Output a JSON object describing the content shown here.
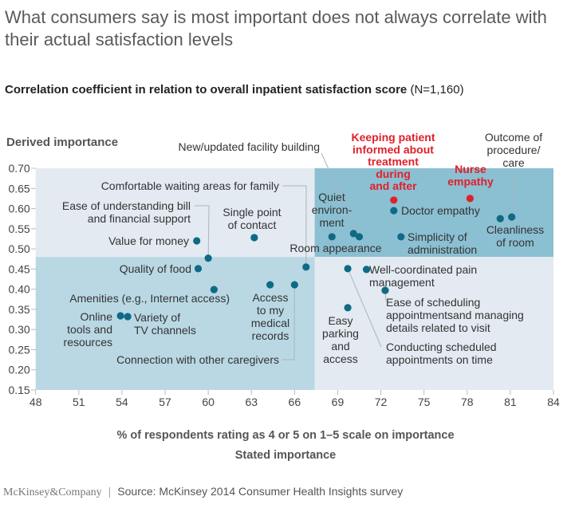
{
  "header": {
    "title": "What consumers say is most important does not always correlate with their actual satisfaction levels",
    "subtitle_bold": "Correlation coefficient in relation to overall inpatient satisfaction score",
    "subtitle_note": "(N=1,160)"
  },
  "footer": {
    "logo": "McKinsey&Company",
    "source": "Source: McKinsey 2014 Consumer Health Insights survey"
  },
  "colors": {
    "point": "#0e6a85",
    "highlight": "#e0202a",
    "quad_light": "#e3eaf1",
    "quad_mid": "#b9d8e4",
    "quad_dark": "#8bbfd2",
    "leader": "#a9b6bd"
  },
  "chart_data": {
    "type": "scatter",
    "title": "Correlation coefficient in relation to overall inpatient satisfaction score (N=1,160)",
    "xlabel": "% of respondents rating as 4 or 5 on 1–5 scale on importance",
    "xlabel2": "Stated importance",
    "ylabel": "Derived importance",
    "xlim": [
      48,
      84
    ],
    "ylim": [
      0.15,
      0.7
    ],
    "xticks": [
      "48",
      "51",
      "54",
      "57",
      "60",
      "63",
      "66",
      "69",
      "72",
      "75",
      "78",
      "81",
      "84"
    ],
    "yticks": [
      "0.15",
      "0.20",
      "0.25",
      "0.30",
      "0.35",
      "0.40",
      "0.45",
      "0.50",
      "0.55",
      "0.60",
      "0.65",
      "0.70"
    ],
    "quadrant_split": {
      "x": 67.4,
      "y": 0.48
    },
    "grid": false,
    "points": [
      {
        "name": "Value for money",
        "x": 59.2,
        "y": 0.52,
        "highlight": false
      },
      {
        "name": "Single point of contact",
        "x": 63.2,
        "y": 0.528,
        "highlight": false
      },
      {
        "name": "Ease of understanding bill and financial support",
        "x": 60.0,
        "y": 0.477,
        "highlight": false
      },
      {
        "name": "Quality of food",
        "x": 59.3,
        "y": 0.451,
        "highlight": false
      },
      {
        "name": "Amenities (e.g., Internet access)",
        "x": 60.4,
        "y": 0.399,
        "highlight": false
      },
      {
        "name": "Access to my medical records",
        "x": 64.3,
        "y": 0.411,
        "highlight": false
      },
      {
        "name": "Connection with other caregivers",
        "x": 66.0,
        "y": 0.411,
        "highlight": false
      },
      {
        "name": "Comfortable waiting areas for family",
        "x": 66.8,
        "y": 0.455,
        "highlight": false
      },
      {
        "name": "Online tools and resources",
        "x": 53.9,
        "y": 0.334,
        "highlight": false
      },
      {
        "name": "Variety of TV channels",
        "x": 54.4,
        "y": 0.332,
        "highlight": false
      },
      {
        "name": "Quiet environment",
        "x": 68.6,
        "y": 0.53,
        "highlight": false
      },
      {
        "name": "Room appearance",
        "x": 70.1,
        "y": 0.538,
        "highlight": false
      },
      {
        "name": "New/updated facility building",
        "x": 70.5,
        "y": 0.53,
        "highlight": false
      },
      {
        "name": "Keeping patient informed about treatment during and after",
        "x": 72.9,
        "y": 0.621,
        "highlight": true
      },
      {
        "name": "Doctor empathy",
        "x": 72.9,
        "y": 0.595,
        "highlight": false
      },
      {
        "name": "Simplicity of administration",
        "x": 73.4,
        "y": 0.53,
        "highlight": false
      },
      {
        "name": "Nurse empathy",
        "x": 78.2,
        "y": 0.625,
        "highlight": true
      },
      {
        "name": "Cleanliness of room",
        "x": 80.3,
        "y": 0.575,
        "highlight": false
      },
      {
        "name": "Outcome of procedure/care",
        "x": 81.1,
        "y": 0.579,
        "highlight": false
      },
      {
        "name": "Conducting scheduled appointments on time",
        "x": 69.7,
        "y": 0.451,
        "highlight": false
      },
      {
        "name": "Well-coordinated pain management",
        "x": 71.0,
        "y": 0.449,
        "highlight": false
      },
      {
        "name": "Ease of scheduling appointmentsand managing details related to visit",
        "x": 72.3,
        "y": 0.397,
        "highlight": false
      },
      {
        "name": "Easy parking and access",
        "x": 69.7,
        "y": 0.354,
        "highlight": false
      }
    ],
    "labels": [
      {
        "point": 0,
        "lines": [
          "Value for money"
        ]
      },
      {
        "point": 1,
        "lines": [
          "Single point",
          "of contact"
        ]
      },
      {
        "point": 2,
        "lines": [
          "Ease of understanding bill",
          "and financial support"
        ]
      },
      {
        "point": 3,
        "lines": [
          "Quality of food"
        ]
      },
      {
        "point": 4,
        "lines": [
          "Amenities (e.g., Internet access)"
        ]
      },
      {
        "point": 5,
        "lines": [
          "Access",
          "to my",
          "medical",
          "records"
        ]
      },
      {
        "point": 6,
        "lines": [
          "Connection with other caregivers"
        ]
      },
      {
        "point": 7,
        "lines": [
          "Comfortable waiting areas for family"
        ]
      },
      {
        "point": 8,
        "lines": [
          "Online",
          "tools and",
          "resources"
        ]
      },
      {
        "point": 9,
        "lines": [
          "Variety of",
          "TV channels"
        ]
      },
      {
        "point": 10,
        "lines": [
          "Quiet",
          "environ-",
          "ment"
        ]
      },
      {
        "point": 11,
        "lines": [
          "Room appearance"
        ]
      },
      {
        "point": 12,
        "lines": [
          "New/updated facility building"
        ]
      },
      {
        "point": 13,
        "lines": [
          "Keeping patient",
          "informed about",
          "treatment",
          "during",
          "and after"
        ]
      },
      {
        "point": 14,
        "lines": [
          "Doctor empathy"
        ]
      },
      {
        "point": 15,
        "lines": [
          "Simplicity of",
          "administration"
        ]
      },
      {
        "point": 16,
        "lines": [
          "Nurse",
          "empathy"
        ]
      },
      {
        "point": 17,
        "lines": [
          "Cleanliness",
          "of room"
        ]
      },
      {
        "point": 18,
        "lines": [
          "Outcome of",
          "procedure/",
          "care"
        ]
      },
      {
        "point": 19,
        "lines": [
          "Conducting scheduled",
          "appointments on time"
        ]
      },
      {
        "point": 20,
        "lines": [
          "Well-coordinated pain",
          "management"
        ]
      },
      {
        "point": 21,
        "lines": [
          "Ease of scheduling",
          "appointmentsand managing",
          "details related to visit"
        ]
      },
      {
        "point": 22,
        "lines": [
          "Easy",
          "parking",
          "and",
          "access"
        ]
      }
    ]
  }
}
